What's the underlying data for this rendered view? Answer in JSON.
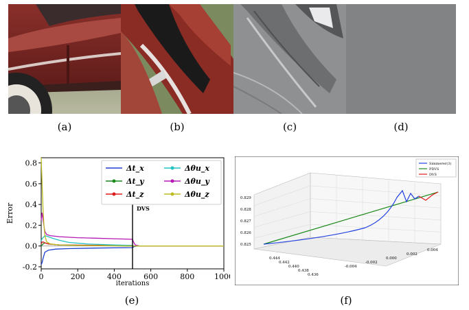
{
  "figure": {
    "captions": [
      "(a)",
      "(b)",
      "(c)",
      "(d)",
      "(e)",
      "(f)"
    ]
  },
  "chart_data": [
    {
      "type": "line",
      "title": "",
      "xlabel": "iterations",
      "ylabel": "Error",
      "xlim": [
        0,
        1000
      ],
      "ylim": [
        -0.22,
        0.85
      ],
      "x_ticks": [
        "0",
        "200",
        "400",
        "600",
        "800",
        "1000"
      ],
      "y_ticks": [
        "-0.2",
        "0.0",
        "0.2",
        "0.4",
        "0.6",
        "0.8"
      ],
      "legend_position": "top-right",
      "annotation": {
        "text": "DVS",
        "x": 500
      },
      "series": [
        {
          "name": "Δt_x",
          "color": "#1f3fd0",
          "x": [
            0,
            5,
            10,
            20,
            40,
            80,
            150,
            300,
            500,
            510,
            530,
            600,
            1000
          ],
          "y": [
            -0.18,
            -0.16,
            -0.12,
            -0.06,
            -0.04,
            -0.03,
            -0.025,
            -0.02,
            -0.015,
            -0.005,
            0.0,
            0.0,
            0.0
          ]
        },
        {
          "name": "Δt_y",
          "color": "#1a8a1a",
          "x": [
            0,
            5,
            10,
            20,
            40,
            100,
            300,
            500,
            510,
            530,
            1000
          ],
          "y": [
            0.0,
            0.01,
            0.02,
            0.03,
            0.02,
            0.01,
            0.005,
            0.0,
            0.0,
            0.0,
            0.0
          ]
        },
        {
          "name": "Δt_z",
          "color": "#e01b1b",
          "x": [
            0,
            5,
            10,
            20,
            40,
            100,
            500,
            510,
            1000
          ],
          "y": [
            0.02,
            0.035,
            0.04,
            0.03,
            0.02,
            0.01,
            0.005,
            0.0,
            0.0
          ]
        },
        {
          "name": "Δθu_x",
          "color": "#21c2c2",
          "x": [
            0,
            5,
            10,
            20,
            40,
            60,
            100,
            150,
            250,
            400,
            500,
            510,
            530,
            1000
          ],
          "y": [
            0.05,
            0.07,
            0.08,
            0.1,
            0.09,
            0.075,
            0.055,
            0.035,
            0.02,
            0.01,
            0.005,
            0.0,
            0.0,
            0.0
          ]
        },
        {
          "name": "Δθu_y",
          "color": "#b516b5",
          "x": [
            0,
            5,
            10,
            20,
            30,
            50,
            100,
            200,
            300,
            400,
            500,
            505,
            515,
            540,
            1000
          ],
          "y": [
            0.25,
            0.32,
            0.25,
            0.14,
            0.11,
            0.1,
            0.09,
            0.08,
            0.075,
            0.07,
            0.065,
            0.04,
            0.01,
            0.0,
            0.0
          ]
        },
        {
          "name": "Δθu_z",
          "color": "#bcbd22",
          "x": [
            0,
            5,
            10,
            15,
            20,
            30,
            50,
            100,
            200,
            500,
            510,
            1000
          ],
          "y": [
            0.85,
            0.6,
            0.35,
            0.2,
            0.1,
            0.04,
            0.02,
            0.01,
            0.005,
            0.0,
            0.0,
            0.0
          ]
        }
      ]
    },
    {
      "type": "line",
      "title": "",
      "legend_position": "top-right",
      "series": [
        {
          "name": "Simmerer(3)",
          "color": "#1f3fe0"
        },
        {
          "name": "PDVS",
          "color": "#1a8a1a"
        },
        {
          "name": "DVS",
          "color": "#e01b1b"
        }
      ],
      "z_ticks": [
        "0.825",
        "0.826",
        "0.827",
        "0.828",
        "0.829"
      ],
      "x_ticks": [
        "0.444",
        "0.442",
        "0.440",
        "0.438",
        "0.436"
      ],
      "y_ticks": [
        "-0.004",
        "-0.002",
        "0.000",
        "0.002",
        "0.004"
      ]
    }
  ]
}
